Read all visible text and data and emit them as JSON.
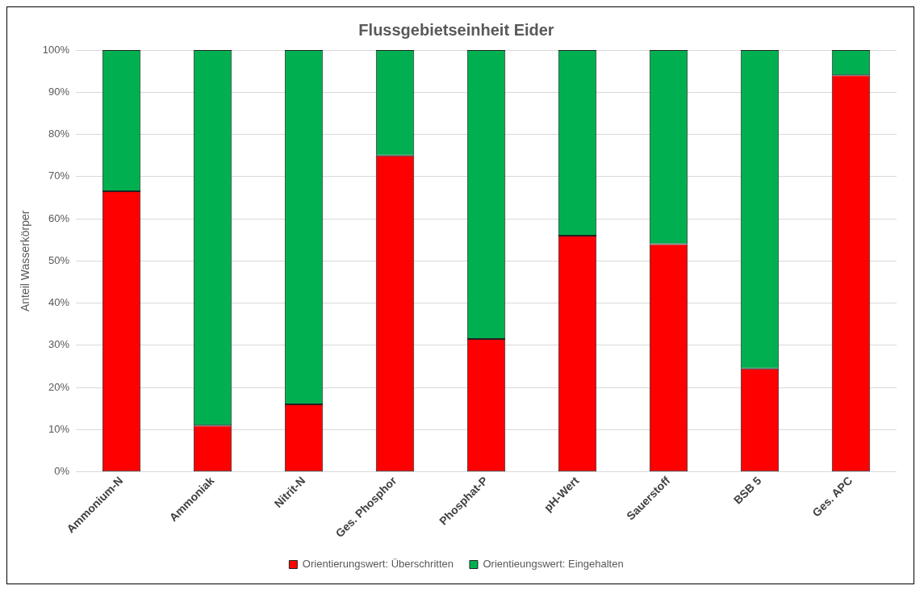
{
  "chart_data": {
    "type": "bar",
    "title": "Flussgebietseinheit Eider",
    "ylabel": "Anteil Wasserkörper",
    "categories": [
      "Ammonium-N",
      "Ammoniak",
      "Nitrit-N",
      "Ges. Phosphor",
      "Phosphat-P",
      "pH-Wert",
      "Sauerstoff",
      "BSB 5",
      "Ges. APC"
    ],
    "series": [
      {
        "name": "Orientierungswert: Überschritten",
        "color": "#ff0000",
        "values": [
          66.5,
          11,
          16,
          75,
          31.5,
          56,
          54,
          24.5,
          94
        ]
      },
      {
        "name": "Orientieungswert: Eingehalten",
        "color": "#00b050",
        "values": [
          33.5,
          89,
          84,
          25,
          68.5,
          44,
          46,
          75.5,
          6
        ]
      }
    ],
    "stacked": true,
    "ylim": [
      0,
      100
    ],
    "yticks": [
      {
        "value": 0,
        "label": "0%"
      },
      {
        "value": 10,
        "label": "10%"
      },
      {
        "value": 20,
        "label": "20%"
      },
      {
        "value": 30,
        "label": "30%"
      },
      {
        "value": 40,
        "label": "40%"
      },
      {
        "value": 50,
        "label": "50%"
      },
      {
        "value": 60,
        "label": "60%"
      },
      {
        "value": 70,
        "label": "70%"
      },
      {
        "value": 80,
        "label": "80%"
      },
      {
        "value": 90,
        "label": "90%"
      },
      {
        "value": 100,
        "label": "100%"
      }
    ],
    "grid": "y",
    "legend": "bottom"
  }
}
